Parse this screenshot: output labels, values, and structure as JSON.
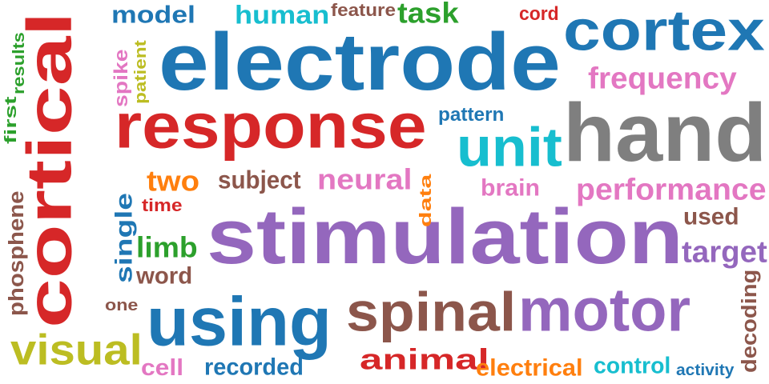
{
  "words": [
    {
      "text": "electrode",
      "color": "#1f77b4"
    },
    {
      "text": "stimulation",
      "color": "#9467bd"
    },
    {
      "text": "hand",
      "color": "#7f7f7f"
    },
    {
      "text": "response",
      "color": "#d62728"
    },
    {
      "text": "cortical",
      "color": "#d62728"
    },
    {
      "text": "cortex",
      "color": "#1f77b4"
    },
    {
      "text": "motor",
      "color": "#9467bd"
    },
    {
      "text": "using",
      "color": "#1f77b4"
    },
    {
      "text": "spinal",
      "color": "#8c564b"
    },
    {
      "text": "unit",
      "color": "#17becf"
    },
    {
      "text": "visual",
      "color": "#bcbd22"
    },
    {
      "text": "performance",
      "color": "#e377c2"
    },
    {
      "text": "frequency",
      "color": "#e377c2"
    },
    {
      "text": "animal",
      "color": "#d62728"
    },
    {
      "text": "neural",
      "color": "#e377c2"
    },
    {
      "text": "two",
      "color": "#ff7f0e"
    },
    {
      "text": "target",
      "color": "#9467bd"
    },
    {
      "text": "model",
      "color": "#1f77b4"
    },
    {
      "text": "human",
      "color": "#17becf"
    },
    {
      "text": "task",
      "color": "#2ca02c"
    },
    {
      "text": "subject",
      "color": "#8c564b"
    },
    {
      "text": "control",
      "color": "#17becf"
    },
    {
      "text": "electrical",
      "color": "#ff7f0e"
    },
    {
      "text": "recorded",
      "color": "#1f77b4"
    },
    {
      "text": "single",
      "color": "#1f77b4"
    },
    {
      "text": "limb",
      "color": "#2ca02c"
    },
    {
      "text": "brain",
      "color": "#e377c2"
    },
    {
      "text": "used",
      "color": "#8c564b"
    },
    {
      "text": "decoding",
      "color": "#8c564b"
    },
    {
      "text": "word",
      "color": "#8c564b"
    },
    {
      "text": "phosphene",
      "color": "#8c564b"
    },
    {
      "text": "feature",
      "color": "#8c564b"
    },
    {
      "text": "pattern",
      "color": "#1f77b4"
    },
    {
      "text": "cell",
      "color": "#e377c2"
    },
    {
      "text": "spike",
      "color": "#e377c2"
    },
    {
      "text": "cord",
      "color": "#d62728"
    },
    {
      "text": "time",
      "color": "#d62728"
    },
    {
      "text": "one",
      "color": "#8c564b"
    },
    {
      "text": "data",
      "color": "#ff7f0e"
    },
    {
      "text": "activity",
      "color": "#1f77b4"
    },
    {
      "text": "patient",
      "color": "#bcbd22"
    },
    {
      "text": "results",
      "color": "#2ca02c"
    },
    {
      "text": "first",
      "color": "#2ca02c"
    }
  ]
}
